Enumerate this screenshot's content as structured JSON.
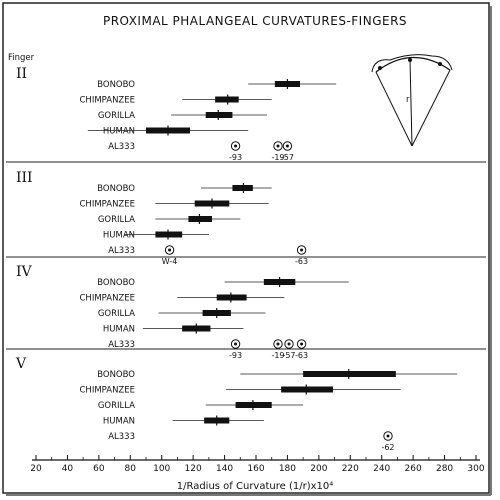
{
  "chart_data": {
    "type": "range",
    "title": "PROXIMAL PHALANGEAL CURVATURES-FINGERS",
    "y_header": "Finger",
    "xlabel": "1/Radius of Curvature (1/r)x10⁴",
    "xlim": [
      20,
      300
    ],
    "xticks": [
      "20",
      "40",
      "60",
      "80",
      "100",
      "120",
      "140",
      "160",
      "180",
      "200",
      "220",
      "240",
      "260",
      "280",
      "300"
    ],
    "xtick_values": [
      20,
      40,
      60,
      80,
      100,
      120,
      140,
      160,
      180,
      200,
      220,
      240,
      260,
      280,
      300
    ],
    "inset": {
      "label": "r"
    },
    "panels": [
      {
        "finger": "II",
        "groups": [
          {
            "name": "BONOBO",
            "min": 155,
            "max": 211,
            "box_low": 172,
            "box_high": 188,
            "mean": 180
          },
          {
            "name": "CHIMPANZEE",
            "min": 113,
            "max": 170,
            "box_low": 134,
            "box_high": 149,
            "mean": 142
          },
          {
            "name": "GORILLA",
            "min": 106,
            "max": 167,
            "box_low": 128,
            "box_high": 145,
            "mean": 136
          },
          {
            "name": "HUMAN",
            "min": 53,
            "max": 155,
            "box_low": 90,
            "box_high": 118,
            "mean": 104
          }
        ],
        "al333": [
          {
            "value": 147,
            "label": "-93"
          },
          {
            "value": 174,
            "label": "-19"
          },
          {
            "value": 180,
            "label": "-57"
          }
        ]
      },
      {
        "finger": "III",
        "groups": [
          {
            "name": "BONOBO",
            "min": 125,
            "max": 170,
            "box_low": 145,
            "box_high": 158,
            "mean": 152
          },
          {
            "name": "CHIMPANZEE",
            "min": 96,
            "max": 168,
            "box_low": 121,
            "box_high": 143,
            "mean": 132
          },
          {
            "name": "GORILLA",
            "min": 96,
            "max": 150,
            "box_low": 117,
            "box_high": 132,
            "mean": 124
          },
          {
            "name": "HUMAN",
            "min": 76,
            "max": 130,
            "box_low": 96,
            "box_high": 113,
            "mean": 104
          }
        ],
        "al333": [
          {
            "value": 105,
            "label": "W-4"
          },
          {
            "value": 189,
            "label": "-63"
          }
        ]
      },
      {
        "finger": "IV",
        "groups": [
          {
            "name": "BONOBO",
            "min": 140,
            "max": 219,
            "box_low": 165,
            "box_high": 185,
            "mean": 175
          },
          {
            "name": "CHIMPANZEE",
            "min": 110,
            "max": 178,
            "box_low": 135,
            "box_high": 154,
            "mean": 144
          },
          {
            "name": "GORILLA",
            "min": 98,
            "max": 166,
            "box_low": 126,
            "box_high": 144,
            "mean": 135
          },
          {
            "name": "HUMAN",
            "min": 88,
            "max": 152,
            "box_low": 113,
            "box_high": 131,
            "mean": 122
          }
        ],
        "al333": [
          {
            "value": 147,
            "label": "-93"
          },
          {
            "value": 174,
            "label": "-19"
          },
          {
            "value": 181,
            "label": "-57"
          },
          {
            "value": 189,
            "label": "-63"
          }
        ]
      },
      {
        "finger": "V",
        "groups": [
          {
            "name": "BONOBO",
            "min": 150,
            "max": 288,
            "box_low": 190,
            "box_high": 249,
            "mean": 219
          },
          {
            "name": "CHIMPANZEE",
            "min": 141,
            "max": 252,
            "box_low": 176,
            "box_high": 209,
            "mean": 192
          },
          {
            "name": "GORILLA",
            "min": 128,
            "max": 190,
            "box_low": 147,
            "box_high": 170,
            "mean": 158
          },
          {
            "name": "HUMAN",
            "min": 107,
            "max": 165,
            "box_low": 127,
            "box_high": 143,
            "mean": 135
          }
        ],
        "al333": [
          {
            "value": 244,
            "label": "-62"
          }
        ]
      }
    ]
  }
}
